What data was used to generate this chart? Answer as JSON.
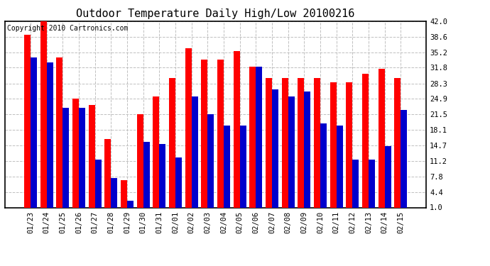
{
  "title": "Outdoor Temperature Daily High/Low 20100216",
  "copyright": "Copyright 2010 Cartronics.com",
  "categories": [
    "01/23",
    "01/24",
    "01/25",
    "01/26",
    "01/27",
    "01/28",
    "01/29",
    "01/30",
    "01/31",
    "02/01",
    "02/02",
    "02/03",
    "02/04",
    "02/05",
    "02/06",
    "02/07",
    "02/08",
    "02/09",
    "02/10",
    "02/11",
    "02/12",
    "02/13",
    "02/14",
    "02/15"
  ],
  "highs": [
    39.0,
    42.0,
    34.0,
    25.0,
    23.5,
    16.0,
    7.0,
    21.5,
    25.5,
    29.5,
    36.0,
    33.5,
    33.5,
    35.5,
    32.0,
    29.5,
    29.5,
    29.5,
    29.5,
    28.5,
    28.5,
    30.5,
    31.5,
    29.5
  ],
  "lows": [
    34.0,
    33.0,
    23.0,
    23.0,
    11.5,
    7.5,
    2.5,
    15.5,
    15.0,
    12.0,
    25.5,
    21.5,
    19.0,
    19.0,
    32.0,
    27.0,
    25.5,
    26.5,
    19.5,
    19.0,
    11.5,
    11.5,
    14.5,
    22.5
  ],
  "high_color": "#ff0000",
  "low_color": "#0000cc",
  "bg_color": "#ffffff",
  "grid_color": "#c0c0c0",
  "ylim": [
    1.0,
    42.0
  ],
  "yticks": [
    1.0,
    4.4,
    7.8,
    11.2,
    14.7,
    18.1,
    21.5,
    24.9,
    28.3,
    31.8,
    35.2,
    38.6,
    42.0
  ],
  "title_fontsize": 11,
  "copyright_fontsize": 7,
  "tick_fontsize": 7.5
}
